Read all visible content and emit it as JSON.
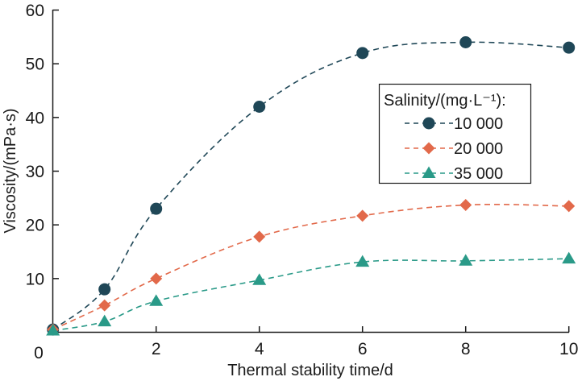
{
  "chart_data": {
    "type": "line",
    "title": "",
    "xlabel": "Thermal stability time/d",
    "ylabel": "Viscosity/(mPa·s)",
    "x": [
      0,
      1,
      2,
      4,
      6,
      8,
      10
    ],
    "xlim": [
      0,
      10
    ],
    "ylim": [
      0,
      60
    ],
    "xticks": [
      0,
      2,
      4,
      6,
      8,
      10
    ],
    "xtick_labels": [
      "0",
      "2",
      "4",
      "6",
      "8",
      "10"
    ],
    "yticks": [
      10,
      20,
      30,
      40,
      50,
      60
    ],
    "ytick_labels": [
      "10",
      "20",
      "30",
      "40",
      "50",
      "60"
    ],
    "grid": false,
    "line_style": "dashed smooth",
    "legend": {
      "title": "Salinity/(mg·L⁻¹):",
      "placement": "right-middle"
    },
    "series": [
      {
        "name": "10 000",
        "marker": "circle",
        "color": "#1F4757",
        "values": [
          0.5,
          8,
          23,
          42,
          52,
          54,
          53
        ]
      },
      {
        "name": "20 000",
        "marker": "diamond",
        "color": "#E2694A",
        "values": [
          0.5,
          5,
          10,
          17.8,
          21.7,
          23.7,
          23.5
        ]
      },
      {
        "name": "35 000",
        "marker": "triangle",
        "color": "#2A9A88",
        "values": [
          0.3,
          2,
          5.8,
          9.7,
          13.1,
          13.3,
          13.7
        ]
      }
    ]
  }
}
